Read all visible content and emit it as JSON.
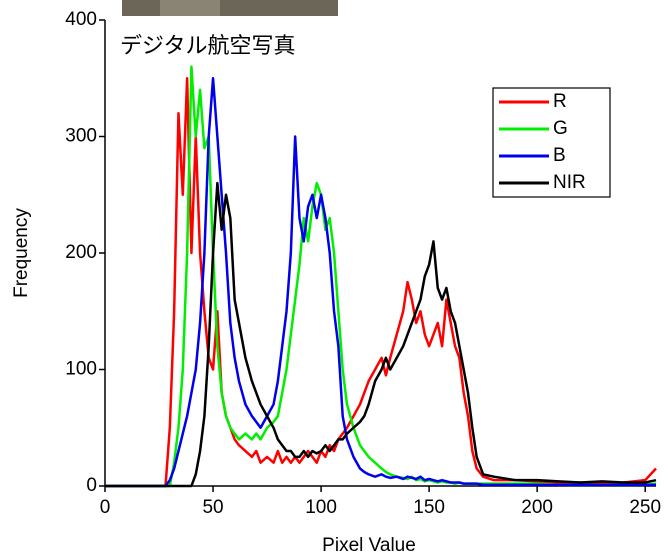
{
  "chart_data": {
    "type": "line",
    "annotation": "デジタル航空写真",
    "x_label": "Pixel Value",
    "y_label": "Frequency",
    "x": [
      0,
      10,
      20,
      25,
      28,
      30,
      32,
      34,
      36,
      38,
      40,
      42,
      44,
      46,
      48,
      50,
      52,
      54,
      56,
      58,
      60,
      62,
      65,
      68,
      70,
      72,
      75,
      78,
      80,
      82,
      84,
      86,
      88,
      90,
      92,
      94,
      96,
      98,
      100,
      102,
      104,
      106,
      108,
      110,
      112,
      115,
      118,
      120,
      122,
      125,
      128,
      130,
      132,
      135,
      138,
      140,
      142,
      144,
      146,
      148,
      150,
      152,
      154,
      156,
      158,
      160,
      162,
      164,
      166,
      168,
      170,
      172,
      175,
      180,
      190,
      200,
      210,
      220,
      230,
      240,
      250,
      255
    ],
    "series": [
      {
        "name": "R",
        "color": "#ff0000",
        "values": [
          0,
          0,
          0,
          0,
          0,
          50,
          150,
          320,
          250,
          350,
          200,
          300,
          200,
          150,
          110,
          100,
          150,
          80,
          60,
          50,
          40,
          35,
          30,
          25,
          30,
          20,
          25,
          20,
          30,
          20,
          25,
          20,
          25,
          20,
          25,
          30,
          25,
          20,
          30,
          25,
          35,
          30,
          40,
          45,
          50,
          60,
          70,
          80,
          90,
          100,
          110,
          95,
          110,
          130,
          150,
          175,
          160,
          140,
          150,
          130,
          120,
          130,
          140,
          120,
          160,
          140,
          120,
          110,
          80,
          60,
          30,
          15,
          8,
          5,
          5,
          4,
          3,
          3,
          2,
          3,
          5,
          15
        ]
      },
      {
        "name": "G",
        "color": "#00ee00",
        "values": [
          0,
          0,
          0,
          0,
          0,
          0,
          20,
          50,
          100,
          200,
          360,
          300,
          340,
          290,
          300,
          200,
          120,
          80,
          60,
          50,
          45,
          40,
          45,
          40,
          45,
          40,
          50,
          55,
          60,
          80,
          100,
          130,
          160,
          190,
          230,
          210,
          240,
          260,
          250,
          220,
          230,
          200,
          150,
          100,
          70,
          50,
          35,
          30,
          25,
          20,
          15,
          12,
          10,
          8,
          7,
          6,
          8,
          5,
          6,
          4,
          5,
          4,
          3,
          4,
          3,
          3,
          2,
          3,
          2,
          2,
          2,
          2,
          2,
          2,
          2,
          2,
          1,
          1,
          1,
          1,
          1,
          2
        ]
      },
      {
        "name": "B",
        "color": "#0000ee",
        "values": [
          0,
          0,
          0,
          0,
          0,
          5,
          15,
          30,
          45,
          60,
          80,
          100,
          140,
          200,
          300,
          350,
          300,
          250,
          200,
          140,
          110,
          90,
          70,
          60,
          55,
          50,
          60,
          70,
          90,
          120,
          150,
          200,
          300,
          230,
          210,
          240,
          250,
          230,
          250,
          230,
          200,
          150,
          120,
          60,
          40,
          25,
          15,
          12,
          10,
          8,
          10,
          8,
          7,
          8,
          6,
          8,
          7,
          6,
          8,
          5,
          6,
          5,
          4,
          5,
          4,
          3,
          3,
          3,
          2,
          2,
          2,
          2,
          1,
          1,
          1,
          1,
          1,
          1,
          1,
          1,
          1,
          1
        ]
      },
      {
        "name": "NIR",
        "color": "#000000",
        "values": [
          0,
          0,
          0,
          0,
          0,
          0,
          0,
          0,
          0,
          0,
          0,
          10,
          30,
          60,
          120,
          200,
          260,
          220,
          250,
          230,
          160,
          140,
          110,
          90,
          80,
          70,
          60,
          50,
          40,
          35,
          30,
          30,
          25,
          25,
          30,
          25,
          30,
          28,
          30,
          35,
          30,
          35,
          40,
          40,
          45,
          50,
          55,
          60,
          70,
          90,
          100,
          110,
          100,
          110,
          120,
          130,
          140,
          150,
          160,
          180,
          190,
          210,
          170,
          160,
          170,
          150,
          140,
          120,
          100,
          80,
          50,
          25,
          10,
          8,
          5,
          5,
          4,
          3,
          4,
          3,
          3,
          5
        ]
      }
    ],
    "xlim": [
      0,
      255
    ],
    "xticks": [
      0,
      50,
      100,
      150,
      200,
      250
    ],
    "ylim": [
      0,
      400
    ],
    "yticks": [
      0,
      100,
      200,
      300,
      400
    ],
    "legend": "upper right"
  }
}
